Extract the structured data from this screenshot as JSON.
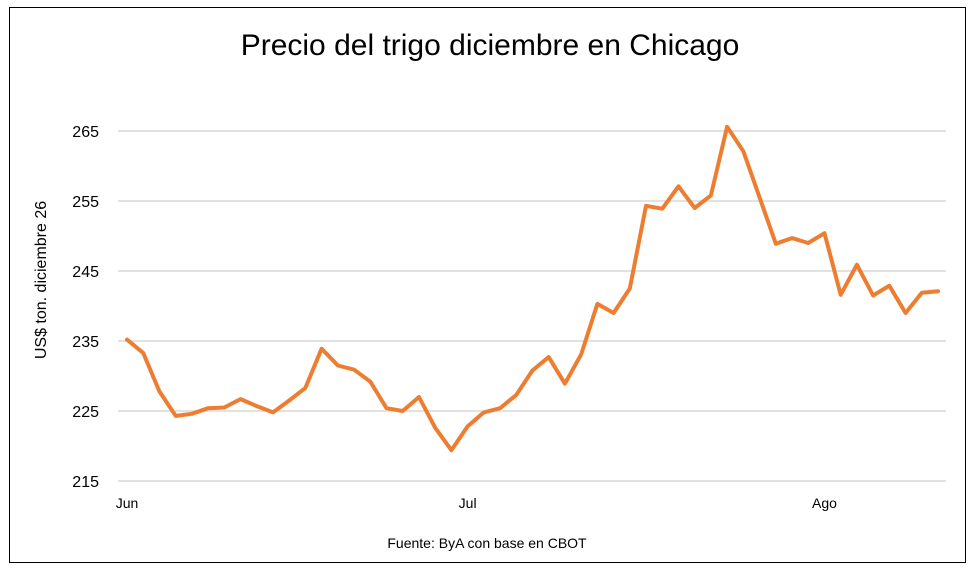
{
  "chart_data": {
    "type": "line",
    "title": "Precio del trigo diciembre en Chicago",
    "ylabel": "US$ ton. diciembre 26",
    "xlabel": "",
    "source": "Fuente: ByA con base en CBOT",
    "ylim": [
      215,
      268
    ],
    "yticks": [
      215,
      225,
      235,
      245,
      255,
      265
    ],
    "grid": true,
    "legend": "none",
    "series_color": "#ed7d31",
    "grid_color": "#d9d9d9",
    "xtick_labels": [
      {
        "label": "Jun",
        "index": 0
      },
      {
        "label": "Jul",
        "index": 21
      },
      {
        "label": "Ago",
        "index": 43
      }
    ],
    "series": [
      {
        "values": [
          235.2,
          233.3,
          227.8,
          224.3,
          224.6,
          225.4,
          225.5,
          226.7,
          225.7,
          224.8,
          226.5,
          228.3,
          233.9,
          231.5,
          230.9,
          229.2,
          225.4,
          225.0,
          227.0,
          222.6,
          219.4,
          222.8,
          224.8,
          225.4,
          227.3,
          230.8,
          232.7,
          228.9,
          233.1,
          240.3,
          239.0,
          242.5,
          254.3,
          253.9,
          257.1,
          254.0,
          255.8,
          265.6,
          262.1,
          255.5,
          248.9,
          249.7,
          249.0,
          250.4,
          241.6,
          245.9,
          241.5,
          242.9,
          239.0,
          241.9,
          242.1
        ]
      }
    ]
  }
}
